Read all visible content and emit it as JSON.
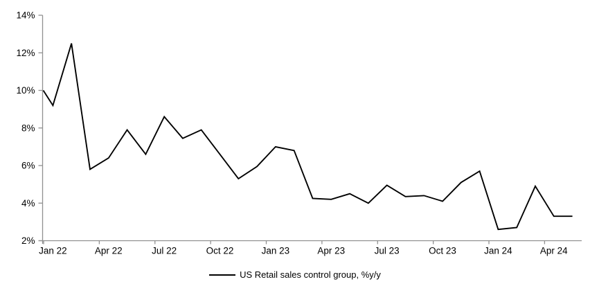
{
  "chart_data": {
    "type": "line",
    "title": "",
    "legend_label": "US Retail sales control group, %y/y",
    "legend_position": "bottom-center",
    "grid": false,
    "line_color": "#000000",
    "axis_color": "#909090",
    "text_color": "#000000",
    "ylim": [
      2,
      14
    ],
    "ytick_step": 2,
    "ytick_labels": [
      "2%",
      "4%",
      "6%",
      "8%",
      "10%",
      "12%",
      "14%"
    ],
    "xtick_labels": [
      "Jan 22",
      "Apr 22",
      "Jul 22",
      "Oct 22",
      "Jan 23",
      "Apr 23",
      "Jul 23",
      "Oct 23",
      "Jan 24",
      "Apr 24"
    ],
    "xtick_every_months": 3,
    "left_edge_entry": 10.0,
    "x": [
      "Jan 22",
      "Feb 22",
      "Mar 22",
      "Apr 22",
      "May 22",
      "Jun 22",
      "Jul 22",
      "Aug 22",
      "Sep 22",
      "Oct 22",
      "Nov 22",
      "Dec 22",
      "Jan 23",
      "Feb 23",
      "Mar 23",
      "Apr 23",
      "May 23",
      "Jun 23",
      "Jul 23",
      "Aug 23",
      "Sep 23",
      "Oct 23",
      "Nov 23",
      "Dec 23",
      "Jan 24",
      "Feb 24",
      "Mar 24",
      "Apr 24",
      "May 24"
    ],
    "series": [
      {
        "name": "US Retail sales control group, %y/y",
        "values": [
          9.2,
          12.5,
          5.8,
          6.4,
          7.9,
          6.6,
          8.6,
          7.45,
          7.9,
          6.6,
          5.3,
          5.95,
          7.0,
          6.8,
          4.25,
          4.2,
          4.5,
          4.0,
          4.95,
          4.35,
          4.4,
          4.1,
          5.1,
          5.7,
          2.6,
          2.7,
          4.9,
          3.3,
          3.3
        ]
      }
    ]
  }
}
